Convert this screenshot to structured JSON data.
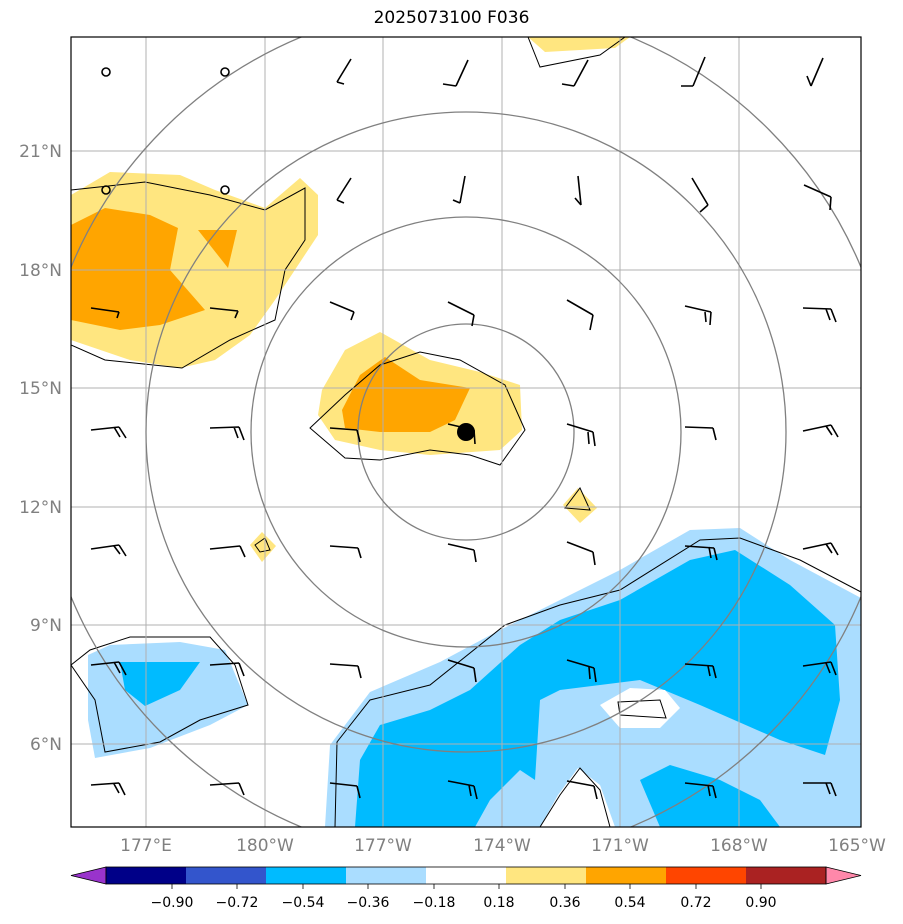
{
  "title": "2025073100 F036",
  "lat_ticks": [
    "21°N",
    "18°N",
    "15°N",
    "12°N",
    "9°N",
    "6°N"
  ],
  "lon_ticks": [
    "177°E",
    "180°W",
    "177°W",
    "174°W",
    "171°W",
    "168°W",
    "165°W"
  ],
  "colorbar": {
    "labels": [
      "−0.90",
      "−0.72",
      "−0.54",
      "−0.36",
      "−0.18",
      "0.18",
      "0.36",
      "0.54",
      "0.72",
      "0.90"
    ],
    "colors": [
      "#9933cc",
      "#000088",
      "#3355cc",
      "#00bbff",
      "#aaddff",
      "#ffffff",
      "#ffe680",
      "#ffa500",
      "#ff4500",
      "#aa2222",
      "#ff88aa"
    ]
  },
  "storm_center": {
    "lat": 13.9,
    "lon": -174.1
  },
  "colors": {
    "range_rings": "#808080",
    "gridlines": "#b0b0b0",
    "contour_lines": "#000000"
  }
}
